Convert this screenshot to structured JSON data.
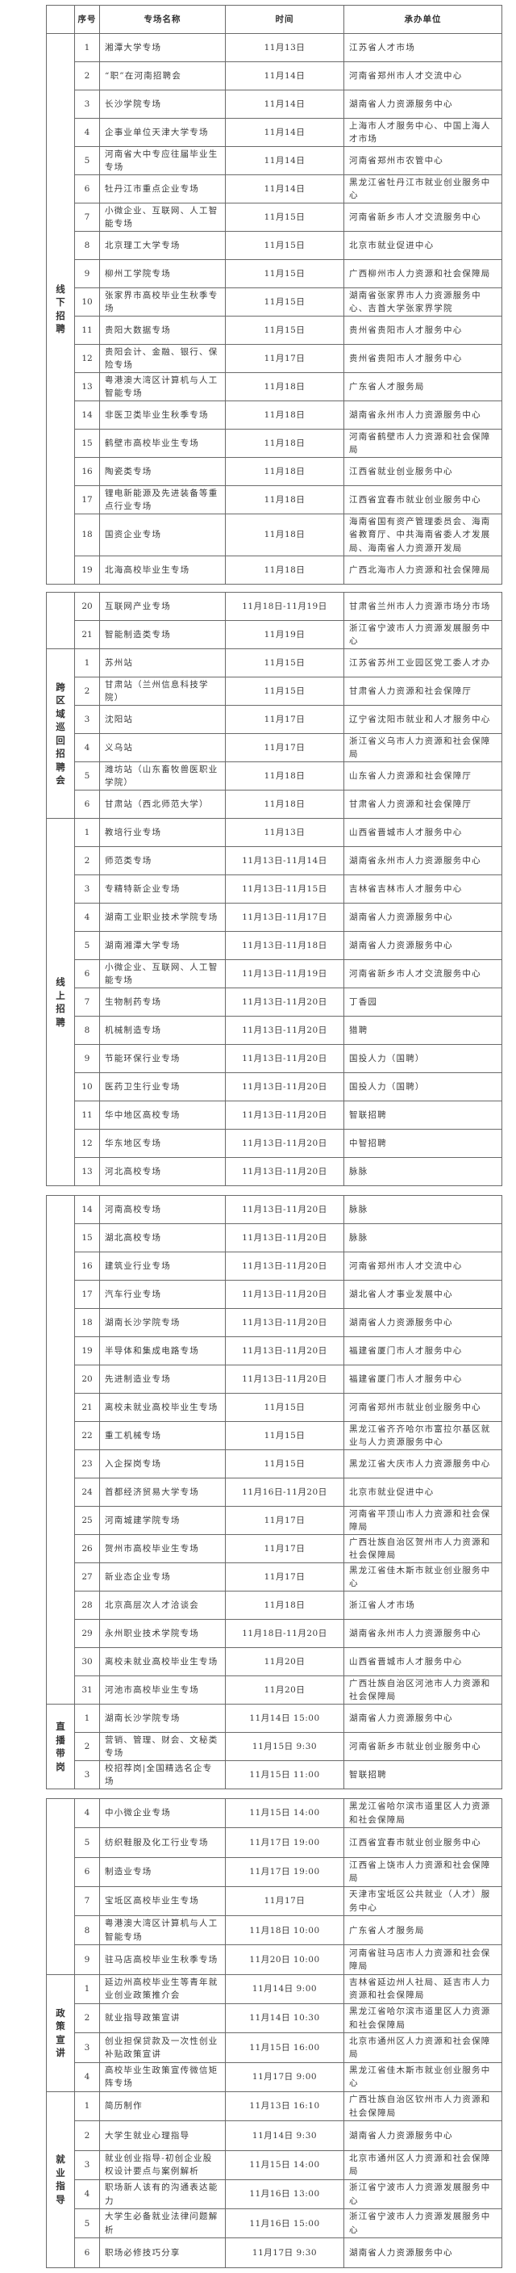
{
  "header": [
    "",
    "序号",
    "专场名称",
    "时间",
    "承办单位"
  ],
  "blocks": [
    {
      "groups": [
        {
          "label": "线下招聘",
          "rows": [
            [
              "1",
              "湘潭大学专场",
              "11月13日",
              "江苏省人才市场"
            ],
            [
              "2",
              "“职”在河南招聘会",
              "11月14日",
              "河南省郑州市人才交流中心"
            ],
            [
              "3",
              "长沙学院专场",
              "11月14日",
              "湖南省人力资源服务中心"
            ],
            [
              "4",
              "企事业单位天津大学专场",
              "11月14日",
              "上海市人才服务中心、中国上海人才市场"
            ],
            [
              "5",
              "河南省大中专应往届毕业生专场",
              "11月14日",
              "河南省郑州市农管中心"
            ],
            [
              "6",
              "牡丹江市重点企业专场",
              "11月14日",
              "黑龙江省牡丹江市就业创业服务中心"
            ],
            [
              "7",
              "小微企业、互联网、人工智能专场",
              "11月15日",
              "河南省新乡市人才交流服务中心"
            ],
            [
              "8",
              "北京理工大学专场",
              "11月15日",
              "北京市就业促进中心"
            ],
            [
              "9",
              "柳州工学院专场",
              "11月15日",
              "广西柳州市人力资源和社会保障局"
            ],
            [
              "10",
              "张家界市高校毕业生秋季专场",
              "11月15日",
              "湖南省张家界市人力资源服务中心、吉首大学张家界学院"
            ],
            [
              "11",
              "贵阳大数据专场",
              "11月15日",
              "贵州省贵阳市人才服务中心"
            ],
            [
              "12",
              "贵阳会计、金融、银行、保险专场",
              "11月17日",
              "贵州省贵阳市人才服务中心"
            ],
            [
              "13",
              "粤港澳大湾区计算机与人工智能专场",
              "11月18日",
              "广东省人才服务局"
            ],
            [
              "14",
              "非医卫类毕业生秋季专场",
              "11月18日",
              "湖南省永州市人力资源服务中心"
            ],
            [
              "15",
              "鹤壁市高校毕业生专场",
              "11月18日",
              "河南省鹤壁市人力资源和社会保障局"
            ],
            [
              "16",
              "陶瓷类专场",
              "11月18日",
              "江西省就业创业服务中心"
            ],
            [
              "17",
              "锂电新能源及先进装备等重点行业专场",
              "11月18日",
              "江西省宜春市就业创业服务中心"
            ],
            [
              "18",
              "国资企业专场",
              "11月18日",
              "海南省国有资产管理委员会、海南省教育厅、中共海南省委人才发展局、海南省人力资源开发局"
            ],
            [
              "19",
              "北海高校毕业生专场",
              "11月18日",
              "广西北海市人力资源和社会保障局"
            ]
          ]
        }
      ]
    },
    {
      "groups": [
        {
          "label": "",
          "rows": [
            [
              "20",
              "互联网产业专场",
              "11月18日-11月19日",
              "甘肃省兰州市人力资源市场分市场"
            ],
            [
              "21",
              "智能制造类专场",
              "11月19日",
              "浙江省宁波市人力资源发展服务中心"
            ]
          ]
        },
        {
          "label": "跨区域巡回招聘会",
          "rows": [
            [
              "1",
              "苏州站",
              "11月15日",
              "江苏省苏州工业园区党工委人才办"
            ],
            [
              "2",
              "甘肃站（兰州信息科技学院）",
              "11月15日",
              "甘肃省人力资源和社会保障厅"
            ],
            [
              "3",
              "沈阳站",
              "11月17日",
              "辽宁省沈阳市就业和人才服务中心"
            ],
            [
              "4",
              "义乌站",
              "11月17日",
              "浙江省义乌市人力资源和社会保障局"
            ],
            [
              "5",
              "潍坊站（山东畜牧兽医职业学院）",
              "11月18日",
              "山东省人力资源和社会保障厅"
            ],
            [
              "6",
              "甘肃站（西北师范大学）",
              "11月18日",
              "甘肃省人力资源和社会保障厅"
            ]
          ]
        },
        {
          "label": "线上招聘",
          "rows": [
            [
              "1",
              "教培行业专场",
              "11月13日",
              "山西省晋城市人才服务中心"
            ],
            [
              "2",
              "师范类专场",
              "11月13日-11月14日",
              "湖南省永州市人力资源服务中心"
            ],
            [
              "3",
              "专精特新企业专场",
              "11月13日-11月15日",
              "吉林省吉林市人才服务中心"
            ],
            [
              "4",
              "湖南工业职业技术学院专场",
              "11月13日-11月17日",
              "湖南省人力资源服务中心"
            ],
            [
              "5",
              "湖南湘潭大学专场",
              "11月13日-11月18日",
              "湖南省人力资源服务中心"
            ],
            [
              "6",
              "小微企业、互联网、人工智能专场",
              "11月13日-11月19日",
              "河南省新乡市人才交流服务中心"
            ],
            [
              "7",
              "生物制药专场",
              "11月13日-11月20日",
              "丁香园"
            ],
            [
              "8",
              "机械制造专场",
              "11月13日-11月20日",
              "猎聘"
            ],
            [
              "9",
              "节能环保行业专场",
              "11月13日-11月20日",
              "国投人力（国聘）"
            ],
            [
              "10",
              "医药卫生行业专场",
              "11月13日-11月20日",
              "国投人力（国聘）"
            ],
            [
              "11",
              "华中地区高校专场",
              "11月13日-11月20日",
              "智联招聘"
            ],
            [
              "12",
              "华东地区专场",
              "11月13日-11月20日",
              "中智招聘"
            ],
            [
              "13",
              "河北高校专场",
              "11月13日-11月20日",
              "脉脉"
            ]
          ]
        }
      ]
    },
    {
      "groups": [
        {
          "label": "",
          "rows": [
            [
              "14",
              "河南高校专场",
              "11月13日-11月20日",
              "脉脉"
            ],
            [
              "15",
              "湖北高校专场",
              "11月13日-11月20日",
              "脉脉"
            ],
            [
              "16",
              "建筑业行业专场",
              "11月13日-11月20日",
              "河南省郑州市人才交流中心"
            ],
            [
              "17",
              "汽车行业专场",
              "11月13日-11月20日",
              "湖北省人才事业发展中心"
            ],
            [
              "18",
              "湖南长沙学院专场",
              "11月13日-11月20日",
              "湖南省人力资源服务中心"
            ],
            [
              "19",
              "半导体和集成电路专场",
              "11月13日-11月20日",
              "福建省厦门市人才服务中心"
            ],
            [
              "20",
              "先进制造业专场",
              "11月13日-11月20日",
              "福建省厦门市人才服务中心"
            ],
            [
              "21",
              "离校未就业高校毕业生专场",
              "11月15日",
              "河南省郑州市就业创业服务中心"
            ],
            [
              "22",
              "重工机械专场",
              "11月15日",
              "黑龙江省齐齐哈尔市富拉尔基区就业与人力资源服务中心"
            ],
            [
              "23",
              "入企探岗专场",
              "11月15日",
              "黑龙江省大庆市人力资源服务中心"
            ],
            [
              "24",
              "首都经济贸易大学专场",
              "11月16日-11月20日",
              "北京市就业促进中心"
            ],
            [
              "25",
              "河南城建学院专场",
              "11月17日",
              "河南省平顶山市人力资源和社会保障局"
            ],
            [
              "26",
              "贺州市高校毕业生专场",
              "11月17日",
              "广西壮族自治区贺州市人力资源和社会保障局"
            ],
            [
              "27",
              "新业态企业专场",
              "11月17日",
              "黑龙江省佳木斯市就业创业服务中心"
            ],
            [
              "28",
              "北京高层次人才洽谈会",
              "11月18日",
              "浙江省人才市场"
            ],
            [
              "29",
              "永州职业技术学院专场",
              "11月18日-11月20日",
              "湖南省永州市人力资源服务中心"
            ],
            [
              "30",
              "离校未就业高校毕业生专场",
              "11月20日",
              "山西省晋城市人才服务中心"
            ],
            [
              "31",
              "河池市高校毕业生专场",
              "11月20日",
              "广西壮族自治区河池市人力资源和社会保障局"
            ]
          ]
        },
        {
          "label": "直播带岗",
          "rows": [
            [
              "1",
              "湖南长沙学院专场",
              "11月14日 15:00",
              "湖南省人力资源服务中心"
            ],
            [
              "2",
              "营销、管理、财会、文秘类专场",
              "11月15日 9:30",
              "河南省新乡市就业创业服务中心"
            ],
            [
              "3",
              "校招荐岗|全国精选名企专场",
              "11月15日 11:00",
              "智联招聘"
            ]
          ]
        }
      ]
    },
    {
      "groups": [
        {
          "label": "",
          "rows": [
            [
              "4",
              "中小微企业专场",
              "11月15日 14:00",
              "黑龙江省哈尔滨市道里区人力资源和社会保障局"
            ],
            [
              "5",
              "纺织鞋服及化工行业专场",
              "11月17日 19:00",
              "江西省宜春市就业创业服务中心"
            ],
            [
              "6",
              "制造业专场",
              "11月17日 19:00",
              "江西省上饶市人力资源和社会保障局"
            ],
            [
              "7",
              "宝坻区高校毕业生专场",
              "11月17日",
              "天津市宝坻区公共就业（人才）服务中心"
            ],
            [
              "8",
              "粤港澳大湾区计算机与人工智能专场",
              "11月18日 10:00",
              "广东省人才服务局"
            ],
            [
              "9",
              "驻马店高校毕业生秋季专场",
              "11月20日 10:00",
              "河南省驻马店市人力资源和社会保障局"
            ]
          ]
        },
        {
          "label": "政策宣讲",
          "rows": [
            [
              "1",
              "延边州高校毕业生等青年就业创业政策推介会",
              "11月14日  9:00",
              "吉林省延边州人社局、延吉市人力资源和社会保障局"
            ],
            [
              "2",
              "就业指导政策宣讲",
              "11月14日 10:30",
              "黑龙江省哈尔滨市道里区人力资源和社会保障局"
            ],
            [
              "3",
              "创业担保贷款及一次性创业补贴政策宣讲",
              "11月15日 16:00",
              "北京市通州区人力资源和社会保障局"
            ],
            [
              "4",
              "高校毕业生政策宣传微信矩阵专场",
              "11月17日 9:00",
              "黑龙江省佳木斯市就业创业服务中心"
            ]
          ]
        },
        {
          "label": "就业指导",
          "rows": [
            [
              "1",
              "简历制作",
              "11月13日 16:10",
              "广西壮族自治区钦州市人力资源和社会保障局"
            ],
            [
              "2",
              "大学生就业心理指导",
              "11月14日 9:30",
              "湖南省人力资源服务中心"
            ],
            [
              "3",
              "就业创业指导-初创企业股权设计要点与案例解析",
              "11月15日 14:00",
              "北京市通州区人力资源和社会保障局"
            ],
            [
              "4",
              "职场新人该有的沟通表达能力",
              "11月16日 13:00",
              "浙江省宁波市人力资源发展服务中心"
            ],
            [
              "5",
              "大学生必备就业法律问题解析",
              "11月16日 15:00",
              "浙江省宁波市人力资源发展服务中心"
            ],
            [
              "6",
              "职场必修技巧分享",
              "11月17日 9:30",
              "湖南省人力资源服务中心"
            ]
          ]
        }
      ]
    }
  ]
}
